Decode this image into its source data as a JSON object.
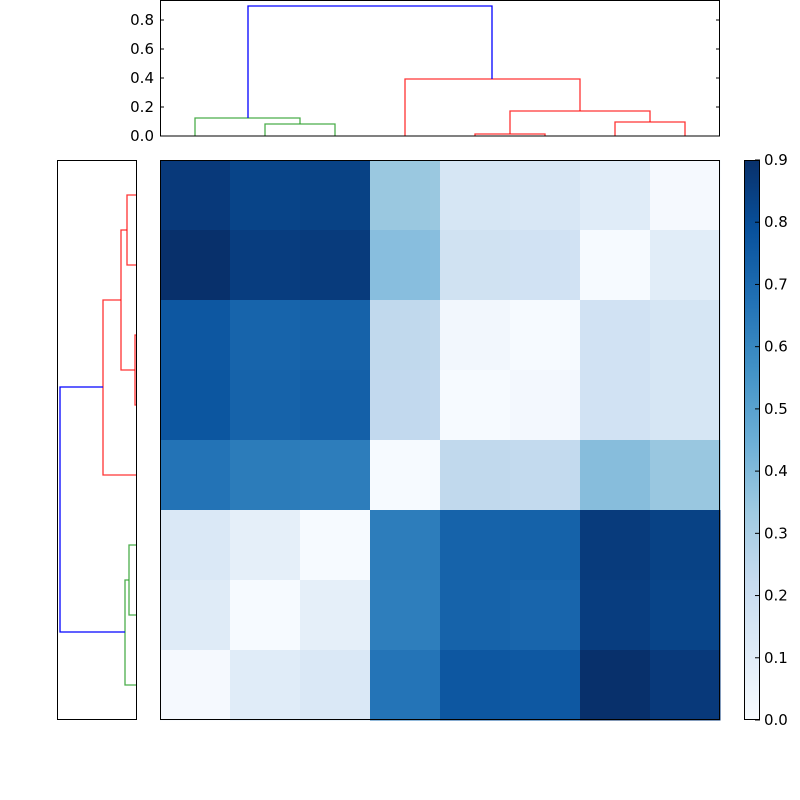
{
  "chart_data": {
    "type": "heatmap",
    "title": "",
    "description": "Clustered heatmap with row and column dendrograms",
    "colormap": "Blues",
    "vmin": 0.0,
    "vmax": 0.9,
    "rows": 8,
    "cols": 8,
    "values": [
      [
        0.85,
        0.8,
        0.82,
        0.36,
        0.12,
        0.12,
        0.09,
        0.02
      ],
      [
        0.9,
        0.84,
        0.86,
        0.42,
        0.15,
        0.15,
        0.02,
        0.09
      ],
      [
        0.75,
        0.7,
        0.7,
        0.2,
        0.03,
        0.02,
        0.15,
        0.13
      ],
      [
        0.76,
        0.7,
        0.71,
        0.2,
        0.02,
        0.04,
        0.15,
        0.13
      ],
      [
        0.65,
        0.62,
        0.62,
        0.02,
        0.2,
        0.2,
        0.42,
        0.36
      ],
      [
        0.11,
        0.07,
        0.02,
        0.62,
        0.71,
        0.7,
        0.86,
        0.82
      ],
      [
        0.1,
        0.02,
        0.07,
        0.62,
        0.7,
        0.69,
        0.84,
        0.8
      ],
      [
        0.02,
        0.1,
        0.11,
        0.65,
        0.76,
        0.75,
        0.9,
        0.85
      ]
    ],
    "cell_colors": [
      [
        "#08397a",
        "#084488",
        "#084285",
        "#9ac8e0",
        "#d6e6f4",
        "#d8e7f5",
        "#e0ecf8",
        "#f5f9fe"
      ],
      [
        "#08306b",
        "#083d7f",
        "#083b7c",
        "#88bede",
        "#d0e2f2",
        "#d1e2f3",
        "#f6faff",
        "#e1edf8"
      ],
      [
        "#0d57a1",
        "#1764ab",
        "#1662a9",
        "#c1d9ed",
        "#f2f7fd",
        "#f6faff",
        "#d1e2f3",
        "#d6e6f4"
      ],
      [
        "#0c56a0",
        "#1663aa",
        "#1460a8",
        "#c2d9ee",
        "#f6faff",
        "#f3f8fe",
        "#d1e2f3",
        "#d6e6f4"
      ],
      [
        "#2373b6",
        "#2c7cba",
        "#2d7dbb",
        "#f6faff",
        "#c1d9ed",
        "#c3daee",
        "#87bddc",
        "#99c7e0"
      ],
      [
        "#dae8f6",
        "#e5eff9",
        "#f6faff",
        "#2d7dbb",
        "#1663aa",
        "#1562a9",
        "#083b7c",
        "#084285"
      ],
      [
        "#dfebf7",
        "#f6faff",
        "#e5eff9",
        "#2e7ebc",
        "#1663aa",
        "#1865ac",
        "#083d7f",
        "#084488"
      ],
      [
        "#f5f9fe",
        "#e0ecf8",
        "#dae8f6",
        "#2474b7",
        "#0d57a1",
        "#0e58a2",
        "#08306b",
        "#08397a"
      ]
    ],
    "colorbar": {
      "ticks": [
        "0.0",
        "0.1",
        "0.2",
        "0.3",
        "0.4",
        "0.5",
        "0.6",
        "0.7",
        "0.8",
        "0.9"
      ],
      "range": [
        0.0,
        0.9
      ]
    },
    "top_dendrogram": {
      "ylabel": "",
      "yticks": [
        "0.0",
        "0.2",
        "0.4",
        "0.6",
        "0.8"
      ],
      "ylim": [
        0.0,
        0.94
      ],
      "colors": {
        "cluster1": "#008000",
        "cluster2": "#ff0000",
        "root": "#0000ff"
      },
      "merges": [
        {
          "left": 6,
          "right": 7,
          "height": 0.1,
          "color": "red"
        },
        {
          "left": 4,
          "right": 5,
          "height": 0.01,
          "color": "red"
        },
        {
          "left": "4-5",
          "right": "6-7",
          "height": 0.17,
          "color": "red"
        },
        {
          "left": 3,
          "right": "4-7",
          "height": 0.39,
          "color": "red"
        },
        {
          "left": 1,
          "right": 2,
          "height": 0.08,
          "color": "green"
        },
        {
          "left": 0,
          "right": "1-2",
          "height": 0.125,
          "color": "green"
        },
        {
          "left": "0-2",
          "right": "3-7",
          "height": 0.9,
          "color": "blue"
        }
      ]
    },
    "left_dendrogram": {
      "merges": [
        {
          "top": 0,
          "bottom": 1,
          "height": 0.1,
          "color": "red"
        },
        {
          "top": 2,
          "bottom": 3,
          "height": 0.01,
          "color": "red"
        },
        {
          "top": "0-1",
          "bottom": "2-3",
          "height": 0.17,
          "color": "red"
        },
        {
          "top": "0-3",
          "bottom": 4,
          "height": 0.39,
          "color": "red"
        },
        {
          "top": 5,
          "bottom": 6,
          "height": 0.08,
          "color": "green"
        },
        {
          "top": "5-6",
          "bottom": 7,
          "height": 0.125,
          "color": "green"
        },
        {
          "top": "0-4",
          "bottom": "5-7",
          "height": 0.9,
          "color": "blue"
        }
      ]
    }
  }
}
